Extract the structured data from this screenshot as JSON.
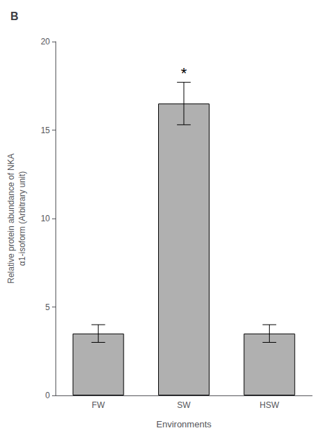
{
  "chart_data": {
    "type": "bar",
    "title": "B",
    "categories": [
      "FW",
      "SW",
      "HSW"
    ],
    "values": [
      3.5,
      16.5,
      3.5
    ],
    "errors": [
      0.5,
      1.2,
      0.5
    ],
    "color": "#b0b0b0",
    "xlabel": "Environments",
    "ylabel": "Relative protein abundance of NKA\nα1-isoform (Arbitrary unit)",
    "ylim": [
      0,
      20
    ],
    "yticks": [
      0,
      5,
      10,
      15,
      20
    ],
    "grid": false,
    "annotations": [
      {
        "text": "*",
        "category": "SW"
      }
    ]
  }
}
